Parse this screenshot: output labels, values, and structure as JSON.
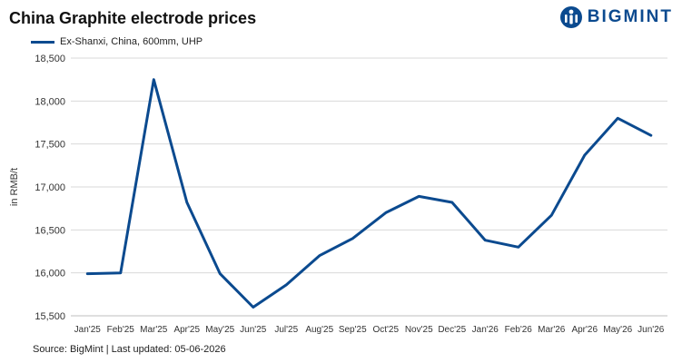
{
  "header": {
    "title": "China Graphite electrode prices",
    "logo_text": "BIGMINT",
    "logo_color": "#0b4a8f"
  },
  "footer": {
    "source": "Source: BigMint | Last updated: 05-06-2026"
  },
  "chart_data": {
    "type": "line",
    "title": "China Graphite electrode prices",
    "ylabel": "in RMB/t",
    "xlabel": "",
    "categories": [
      "Jan'25",
      "Feb'25",
      "Mar'25",
      "Apr'25",
      "May'25",
      "Jun'25",
      "Jul'25",
      "Aug'25",
      "Sep'25",
      "Oct'25",
      "Nov'25",
      "Dec'25",
      "Jan'26",
      "Feb'26",
      "Mar'26",
      "Apr'26",
      "May'26",
      "Jun'26"
    ],
    "series": [
      {
        "name": "Ex-Shanxi, China, 600mm, UHP",
        "color": "#0b4a8f",
        "values": [
          15990,
          16000,
          18250,
          16820,
          15990,
          15600,
          15860,
          16200,
          16400,
          16700,
          16890,
          16820,
          16380,
          16300,
          16670,
          17370,
          17800,
          17600
        ]
      }
    ],
    "ylim": [
      15500,
      18500
    ],
    "yticks": [
      15500,
      16000,
      16500,
      17000,
      17500,
      18000,
      18500
    ],
    "ytick_labels": [
      "15,500",
      "16,000",
      "16,500",
      "17,000",
      "17,500",
      "18,000",
      "18,500"
    ],
    "grid": true,
    "legend_position": "top-left"
  }
}
